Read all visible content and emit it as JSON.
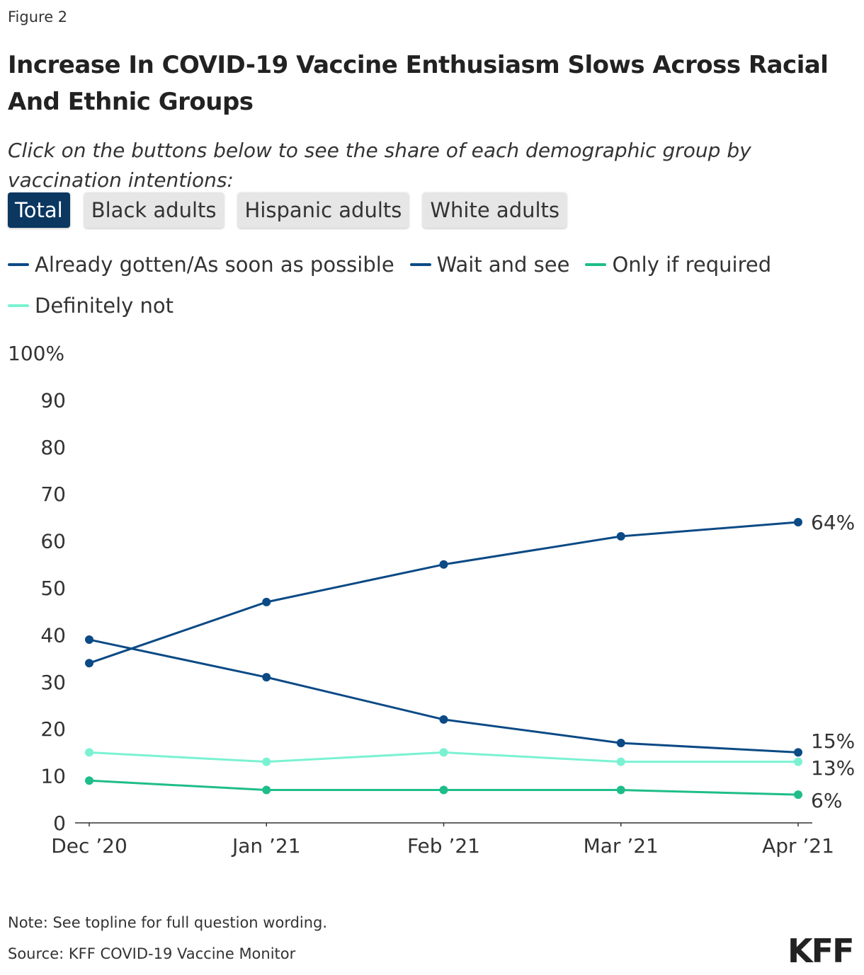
{
  "figure_label": "Figure 2",
  "title": "Increase In COVID-19 Vaccine Enthusiasm Slows Across Racial And Ethnic Groups",
  "subtitle": "Click on the buttons below to see the share of each demographic group by vaccination intentions:",
  "buttons": [
    {
      "label": "Total",
      "active": true
    },
    {
      "label": "Black adults",
      "active": false
    },
    {
      "label": "Hispanic adults",
      "active": false
    },
    {
      "label": "White adults",
      "active": false
    }
  ],
  "note": "Note: See topline for full question wording.",
  "source": "Source: KFF COVID-19 Vaccine Monitor",
  "logo": "KFF",
  "chart_data": {
    "type": "line",
    "x": [
      "Dec ’20",
      "Jan ’21",
      "Feb ’21",
      "Mar ’21",
      "Apr ’21"
    ],
    "ylim": [
      0,
      100
    ],
    "yticks": [
      0,
      10,
      20,
      30,
      40,
      50,
      60,
      70,
      80,
      90,
      100
    ],
    "ytick_labels": [
      "0",
      "10",
      "20",
      "30",
      "40",
      "50",
      "60",
      "70",
      "80",
      "90",
      "100%"
    ],
    "grid": false,
    "legend_position": "top",
    "series": [
      {
        "name": "Already gotten/As soon as possible",
        "color": "#0b4a85",
        "values": [
          34,
          47,
          55,
          61,
          64
        ],
        "end_label": "64%"
      },
      {
        "name": "Wait and see",
        "color": "#0b4a85",
        "values": [
          39,
          31,
          22,
          17,
          15
        ],
        "end_label": "15%"
      },
      {
        "name": "Only if required",
        "color": "#1ebd8a",
        "values": [
          9,
          7,
          7,
          7,
          6
        ],
        "end_label": "6%"
      },
      {
        "name": "Definitely not",
        "color": "#7af2d2",
        "values": [
          15,
          13,
          15,
          13,
          13
        ],
        "end_label": "13%"
      }
    ]
  }
}
